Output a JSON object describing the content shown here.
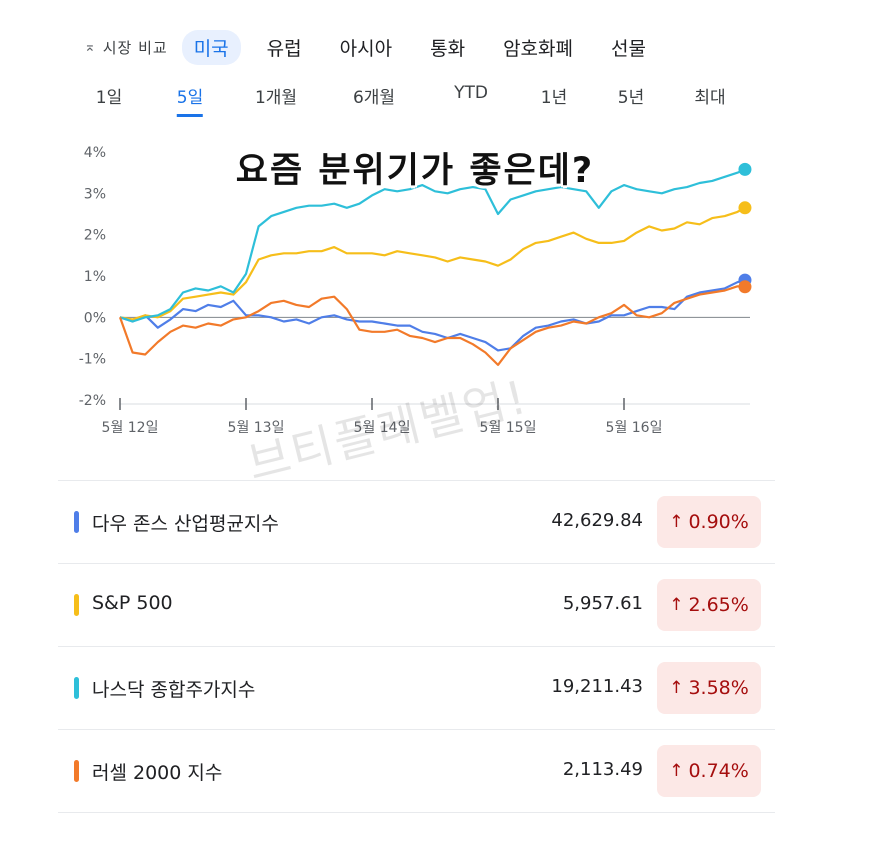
{
  "compare": {
    "label": "시장 비교",
    "icon": "collapse-icon"
  },
  "region_tabs": [
    "미국",
    "유럽",
    "아시아",
    "통화",
    "암호화폐",
    "선물"
  ],
  "region_active": 0,
  "range_tabs": [
    "1일",
    "5일",
    "1개월",
    "6개월",
    "YTD",
    "1년",
    "5년",
    "최대"
  ],
  "range_active": 1,
  "overlay_text": "요즘 분위기가 좋은데?",
  "watermark": "브티플레벨업!",
  "colors": {
    "dow": "#4f7ee8",
    "sp500": "#f6be1a",
    "nasdaq": "#2ebfd9",
    "russell": "#f27a2a"
  },
  "chart_data": {
    "type": "line",
    "title": "",
    "xlabel": "",
    "ylabel": "",
    "y_unit": "%",
    "ylim": [
      -2,
      4
    ],
    "yticks": [
      "4%",
      "3%",
      "2%",
      "1%",
      "0%",
      "-1%",
      "-2%"
    ],
    "xticks": [
      "5월 12일",
      "5월 13일",
      "5월 14일",
      "5월 15일",
      "5월 16일"
    ],
    "x_range": [
      0,
      5
    ],
    "grid": false,
    "series": [
      {
        "name": "다우 존스 산업평균지수",
        "key": "dow",
        "color": "#4f7ee8",
        "x": [
          0,
          0.1,
          0.2,
          0.3,
          0.4,
          0.5,
          0.6,
          0.7,
          0.8,
          0.9,
          1.0,
          1.1,
          1.2,
          1.3,
          1.4,
          1.5,
          1.6,
          1.7,
          1.8,
          1.9,
          2.0,
          2.1,
          2.2,
          2.3,
          2.4,
          2.5,
          2.6,
          2.7,
          2.8,
          2.9,
          3.0,
          3.1,
          3.2,
          3.3,
          3.4,
          3.5,
          3.6,
          3.7,
          3.8,
          3.9,
          4.0,
          4.1,
          4.2,
          4.3,
          4.4,
          4.5,
          4.6,
          4.7,
          4.8,
          4.9,
          4.96
        ],
        "values": [
          0,
          -0.1,
          0.05,
          -0.25,
          -0.05,
          0.2,
          0.15,
          0.3,
          0.25,
          0.4,
          0.05,
          0.05,
          0.0,
          -0.1,
          -0.05,
          -0.15,
          0.0,
          0.05,
          -0.05,
          -0.1,
          -0.1,
          -0.15,
          -0.2,
          -0.2,
          -0.35,
          -0.4,
          -0.5,
          -0.4,
          -0.5,
          -0.6,
          -0.8,
          -0.75,
          -0.45,
          -0.25,
          -0.2,
          -0.1,
          -0.05,
          -0.15,
          -0.1,
          0.05,
          0.05,
          0.15,
          0.25,
          0.25,
          0.2,
          0.5,
          0.6,
          0.65,
          0.7,
          0.85,
          0.9
        ]
      },
      {
        "name": "S&P 500",
        "key": "sp500",
        "color": "#f6be1a",
        "x": [
          0,
          0.1,
          0.2,
          0.3,
          0.4,
          0.5,
          0.6,
          0.7,
          0.8,
          0.9,
          1.0,
          1.1,
          1.2,
          1.3,
          1.4,
          1.5,
          1.6,
          1.7,
          1.8,
          1.9,
          2.0,
          2.1,
          2.2,
          2.3,
          2.4,
          2.5,
          2.6,
          2.7,
          2.8,
          2.9,
          3.0,
          3.1,
          3.2,
          3.3,
          3.4,
          3.5,
          3.6,
          3.7,
          3.8,
          3.9,
          4.0,
          4.1,
          4.2,
          4.3,
          4.4,
          4.5,
          4.6,
          4.7,
          4.8,
          4.9,
          4.96
        ],
        "values": [
          0,
          -0.05,
          0.05,
          0.0,
          0.15,
          0.45,
          0.5,
          0.55,
          0.6,
          0.55,
          0.85,
          1.4,
          1.5,
          1.55,
          1.55,
          1.6,
          1.6,
          1.7,
          1.55,
          1.55,
          1.55,
          1.5,
          1.6,
          1.55,
          1.5,
          1.45,
          1.35,
          1.45,
          1.4,
          1.35,
          1.25,
          1.4,
          1.65,
          1.8,
          1.85,
          1.95,
          2.05,
          1.9,
          1.8,
          1.8,
          1.85,
          2.05,
          2.2,
          2.1,
          2.15,
          2.3,
          2.25,
          2.4,
          2.45,
          2.55,
          2.65
        ]
      },
      {
        "name": "나스닥 종합주가지수",
        "key": "nasdaq",
        "color": "#2ebfd9",
        "x": [
          0,
          0.1,
          0.2,
          0.3,
          0.4,
          0.5,
          0.6,
          0.7,
          0.8,
          0.9,
          1.0,
          1.1,
          1.2,
          1.3,
          1.4,
          1.5,
          1.6,
          1.7,
          1.8,
          1.9,
          2.0,
          2.1,
          2.2,
          2.3,
          2.4,
          2.5,
          2.6,
          2.7,
          2.8,
          2.9,
          3.0,
          3.1,
          3.2,
          3.3,
          3.4,
          3.5,
          3.6,
          3.7,
          3.8,
          3.9,
          4.0,
          4.1,
          4.2,
          4.3,
          4.4,
          4.5,
          4.6,
          4.7,
          4.8,
          4.9,
          4.96
        ],
        "values": [
          0,
          -0.1,
          0.0,
          0.05,
          0.2,
          0.6,
          0.7,
          0.65,
          0.75,
          0.6,
          1.05,
          2.2,
          2.45,
          2.55,
          2.65,
          2.7,
          2.7,
          2.75,
          2.65,
          2.75,
          2.95,
          3.1,
          3.05,
          3.1,
          3.2,
          3.05,
          3.0,
          3.1,
          3.15,
          3.1,
          2.5,
          2.85,
          2.95,
          3.05,
          3.1,
          3.15,
          3.1,
          3.05,
          2.65,
          3.05,
          3.2,
          3.1,
          3.05,
          3.0,
          3.1,
          3.15,
          3.25,
          3.3,
          3.4,
          3.5,
          3.58
        ]
      },
      {
        "name": "러셀 2000 지수",
        "key": "russell",
        "color": "#f27a2a",
        "x": [
          0,
          0.1,
          0.2,
          0.3,
          0.4,
          0.5,
          0.6,
          0.7,
          0.8,
          0.9,
          1.0,
          1.1,
          1.2,
          1.3,
          1.4,
          1.5,
          1.6,
          1.7,
          1.8,
          1.9,
          2.0,
          2.1,
          2.2,
          2.3,
          2.4,
          2.5,
          2.6,
          2.7,
          2.8,
          2.9,
          3.0,
          3.1,
          3.2,
          3.3,
          3.4,
          3.5,
          3.6,
          3.7,
          3.8,
          3.9,
          4.0,
          4.1,
          4.2,
          4.3,
          4.4,
          4.5,
          4.6,
          4.7,
          4.8,
          4.9,
          4.96
        ],
        "values": [
          0,
          -0.85,
          -0.9,
          -0.6,
          -0.35,
          -0.2,
          -0.25,
          -0.15,
          -0.2,
          -0.05,
          0.0,
          0.15,
          0.35,
          0.4,
          0.3,
          0.25,
          0.45,
          0.5,
          0.2,
          -0.3,
          -0.35,
          -0.35,
          -0.3,
          -0.45,
          -0.5,
          -0.6,
          -0.5,
          -0.5,
          -0.65,
          -0.85,
          -1.15,
          -0.75,
          -0.55,
          -0.35,
          -0.25,
          -0.2,
          -0.1,
          -0.15,
          0.0,
          0.1,
          0.3,
          0.05,
          0.0,
          0.1,
          0.35,
          0.45,
          0.55,
          0.6,
          0.65,
          0.75,
          0.74
        ]
      }
    ]
  },
  "indices": [
    {
      "name": "다우 존스 산업평균지수",
      "value": "42,629.84",
      "change": "0.90%",
      "color": "#4f7ee8"
    },
    {
      "name": "S&P 500",
      "value": "5,957.61",
      "change": "2.65%",
      "color": "#f6be1a"
    },
    {
      "name": "나스닥 종합주가지수",
      "value": "19,211.43",
      "change": "3.58%",
      "color": "#2ebfd9"
    },
    {
      "name": "러셀 2000 지수",
      "value": "2,113.49",
      "change": "0.74%",
      "color": "#f27a2a"
    }
  ]
}
